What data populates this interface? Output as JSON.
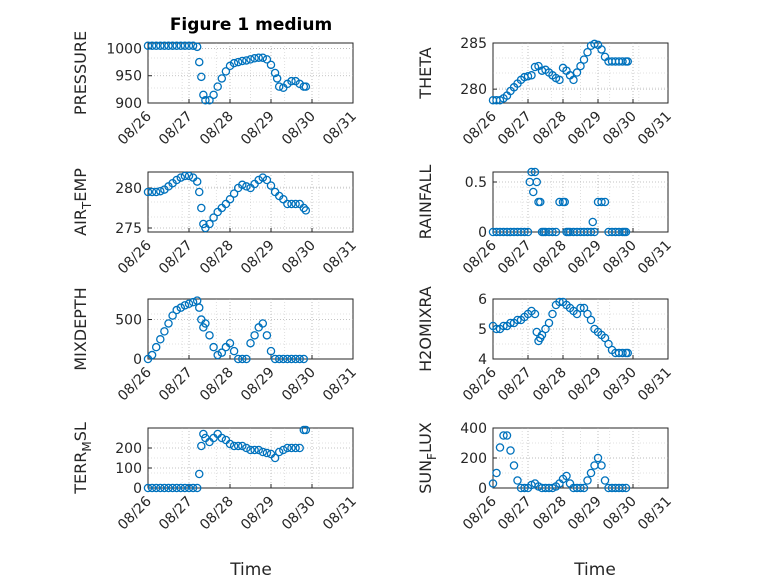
{
  "chart_data": {
    "type": "scatter",
    "title": "Figure 1 medium",
    "marker_color": "#0072BD",
    "x_ticks": [
      "08/26",
      "08/27",
      "08/28",
      "08/29",
      "08/30",
      "08/31"
    ],
    "x_label": "Time",
    "panels": [
      {
        "id": "pressure",
        "ylabel": "PRESSURE",
        "ylabel_sub": null,
        "ylim": [
          900,
          1010
        ],
        "yticks": [
          900,
          950,
          1000
        ],
        "x": [
          0.0,
          0.1,
          0.2,
          0.3,
          0.4,
          0.5,
          0.6,
          0.7,
          0.8,
          0.9,
          1.0,
          1.1,
          1.2,
          1.25,
          1.3,
          1.35,
          1.4,
          1.5,
          1.6,
          1.7,
          1.8,
          1.9,
          2.0,
          2.1,
          2.2,
          2.3,
          2.4,
          2.5,
          2.6,
          2.7,
          2.8,
          2.9,
          3.0,
          3.1,
          3.15,
          3.2,
          3.3,
          3.4,
          3.5,
          3.6,
          3.7,
          3.8,
          3.85
        ],
        "y": [
          1005,
          1005,
          1005,
          1005,
          1005,
          1005,
          1005,
          1005,
          1005,
          1005,
          1005,
          1005,
          1003,
          975,
          948,
          915,
          905,
          905,
          915,
          930,
          945,
          958,
          968,
          973,
          975,
          977,
          978,
          980,
          982,
          983,
          983,
          980,
          970,
          955,
          945,
          930,
          928,
          935,
          940,
          940,
          935,
          930,
          930
        ]
      },
      {
        "id": "theta",
        "ylabel": "THETA",
        "ylabel_sub": null,
        "ylim": [
          278.5,
          285
        ],
        "yticks": [
          280,
          285
        ],
        "x": [
          0.0,
          0.1,
          0.2,
          0.3,
          0.4,
          0.5,
          0.6,
          0.7,
          0.8,
          0.9,
          1.0,
          1.1,
          1.2,
          1.3,
          1.4,
          1.5,
          1.6,
          1.7,
          1.8,
          1.9,
          2.0,
          2.1,
          2.2,
          2.3,
          2.4,
          2.5,
          2.6,
          2.7,
          2.8,
          2.9,
          3.0,
          3.1,
          3.2,
          3.3,
          3.4,
          3.5,
          3.6,
          3.7,
          3.8,
          3.85
        ],
        "y": [
          278.8,
          278.8,
          278.8,
          279.0,
          279.3,
          279.8,
          280.2,
          280.6,
          281.0,
          281.3,
          281.4,
          281.5,
          282.4,
          282.5,
          282.0,
          282.1,
          281.8,
          281.5,
          281.2,
          281.0,
          282.3,
          282.0,
          281.5,
          281.0,
          281.8,
          282.5,
          283.2,
          284.0,
          284.7,
          284.9,
          284.8,
          284.3,
          283.5,
          283.0,
          283.0,
          283.0,
          283.0,
          283.0,
          283.0,
          283.0
        ]
      },
      {
        "id": "air_temp",
        "ylabel": "AIR",
        "ylabel_sub": "T",
        "ylabel_rest": "EMP",
        "ylim": [
          274.5,
          282
        ],
        "yticks": [
          275,
          280
        ],
        "x": [
          0.0,
          0.1,
          0.2,
          0.3,
          0.4,
          0.5,
          0.6,
          0.7,
          0.8,
          0.9,
          1.0,
          1.1,
          1.2,
          1.25,
          1.3,
          1.35,
          1.4,
          1.5,
          1.6,
          1.7,
          1.8,
          1.9,
          2.0,
          2.1,
          2.2,
          2.3,
          2.4,
          2.5,
          2.6,
          2.7,
          2.8,
          2.9,
          3.0,
          3.1,
          3.2,
          3.3,
          3.4,
          3.5,
          3.6,
          3.7,
          3.8,
          3.85
        ],
        "y": [
          279.5,
          279.5,
          279.5,
          279.6,
          279.8,
          280.2,
          280.6,
          281.0,
          281.3,
          281.5,
          281.5,
          281.3,
          280.8,
          279.5,
          277.5,
          275.5,
          275.0,
          275.5,
          276.3,
          277.0,
          277.5,
          278.0,
          278.6,
          279.3,
          280.0,
          280.4,
          280.2,
          280.0,
          280.5,
          281.0,
          281.3,
          281.0,
          280.3,
          279.5,
          279.0,
          278.6,
          278.0,
          278.0,
          278.0,
          278.0,
          277.5,
          277.2
        ]
      },
      {
        "id": "rainfall",
        "ylabel": "RAINFALL",
        "ylabel_sub": null,
        "ylim": [
          0,
          0.6
        ],
        "yticks": [
          0,
          0.5
        ],
        "x": [
          0.0,
          0.1,
          0.2,
          0.3,
          0.4,
          0.5,
          0.6,
          0.7,
          0.8,
          0.9,
          1.0,
          1.05,
          1.1,
          1.15,
          1.2,
          1.25,
          1.3,
          1.35,
          1.4,
          1.45,
          1.5,
          1.6,
          1.7,
          1.8,
          1.9,
          2.0,
          2.05,
          2.1,
          2.15,
          2.2,
          2.3,
          2.4,
          2.5,
          2.6,
          2.7,
          2.8,
          2.85,
          2.9,
          3.0,
          3.1,
          3.2,
          3.3,
          3.4,
          3.5,
          3.6,
          3.7,
          3.75,
          3.8
        ],
        "y": [
          0,
          0,
          0,
          0,
          0,
          0,
          0,
          0,
          0,
          0,
          0,
          0.5,
          0.6,
          0.4,
          0.6,
          0.5,
          0.3,
          0.3,
          0,
          0,
          0,
          0,
          0,
          0,
          0.3,
          0.3,
          0.3,
          0,
          0,
          0,
          0,
          0,
          0,
          0,
          0,
          0,
          0.1,
          0,
          0.3,
          0.3,
          0.3,
          0,
          0,
          0,
          0,
          0,
          0,
          0
        ]
      },
      {
        "id": "mixdepth",
        "ylabel": "MIXDEPTH",
        "ylabel_sub": null,
        "ylim": [
          0,
          760
        ],
        "yticks": [
          0,
          500
        ],
        "x": [
          0.0,
          0.1,
          0.2,
          0.3,
          0.4,
          0.5,
          0.6,
          0.7,
          0.8,
          0.9,
          1.0,
          1.1,
          1.2,
          1.25,
          1.3,
          1.35,
          1.4,
          1.5,
          1.6,
          1.7,
          1.8,
          1.9,
          2.0,
          2.1,
          2.2,
          2.3,
          2.4,
          2.5,
          2.6,
          2.7,
          2.8,
          2.9,
          3.0,
          3.1,
          3.2,
          3.3,
          3.4,
          3.5,
          3.6,
          3.7,
          3.8
        ],
        "y": [
          0,
          50,
          150,
          250,
          350,
          450,
          550,
          620,
          650,
          680,
          700,
          720,
          740,
          650,
          500,
          400,
          450,
          300,
          150,
          50,
          80,
          150,
          200,
          100,
          0,
          0,
          0,
          200,
          300,
          400,
          450,
          300,
          100,
          0,
          0,
          0,
          0,
          0,
          0,
          0,
          0
        ]
      },
      {
        "id": "h2omixra",
        "ylabel": "H2OMIXRA",
        "ylabel_sub": null,
        "ylim": [
          4,
          6
        ],
        "yticks": [
          4,
          5,
          6
        ],
        "x": [
          0.0,
          0.1,
          0.2,
          0.3,
          0.4,
          0.5,
          0.6,
          0.7,
          0.8,
          0.9,
          1.0,
          1.1,
          1.2,
          1.25,
          1.3,
          1.35,
          1.4,
          1.5,
          1.6,
          1.7,
          1.8,
          1.9,
          2.0,
          2.1,
          2.2,
          2.3,
          2.4,
          2.5,
          2.6,
          2.7,
          2.8,
          2.9,
          3.0,
          3.1,
          3.2,
          3.3,
          3.4,
          3.5,
          3.6,
          3.7,
          3.8,
          3.85
        ],
        "y": [
          5.1,
          5.0,
          5.0,
          5.1,
          5.1,
          5.2,
          5.2,
          5.3,
          5.3,
          5.4,
          5.5,
          5.6,
          5.5,
          4.9,
          4.6,
          4.7,
          4.8,
          5.0,
          5.2,
          5.5,
          5.8,
          5.9,
          5.9,
          5.8,
          5.7,
          5.6,
          5.5,
          5.7,
          5.7,
          5.5,
          5.3,
          5.0,
          4.9,
          4.8,
          4.7,
          4.5,
          4.3,
          4.2,
          4.2,
          4.2,
          4.2,
          4.2
        ]
      },
      {
        "id": "terr_msl",
        "ylabel": "TERR",
        "ylabel_sub": "M",
        "ylabel_rest": "SL",
        "ylim": [
          0,
          300
        ],
        "yticks": [
          0,
          100,
          200
        ],
        "x": [
          0.0,
          0.1,
          0.2,
          0.3,
          0.4,
          0.5,
          0.6,
          0.7,
          0.8,
          0.9,
          1.0,
          1.1,
          1.2,
          1.25,
          1.3,
          1.35,
          1.4,
          1.5,
          1.6,
          1.7,
          1.8,
          1.9,
          2.0,
          2.1,
          2.2,
          2.3,
          2.4,
          2.5,
          2.6,
          2.7,
          2.8,
          2.9,
          3.0,
          3.1,
          3.2,
          3.3,
          3.4,
          3.5,
          3.6,
          3.7,
          3.8,
          3.85
        ],
        "y": [
          0,
          0,
          0,
          0,
          0,
          0,
          0,
          0,
          0,
          0,
          0,
          0,
          0,
          70,
          210,
          270,
          250,
          230,
          250,
          270,
          250,
          240,
          220,
          210,
          210,
          210,
          200,
          190,
          190,
          190,
          180,
          175,
          170,
          150,
          180,
          190,
          200,
          200,
          200,
          200,
          290,
          290
        ]
      },
      {
        "id": "sun_flux",
        "ylabel": "SUN",
        "ylabel_sub": "F",
        "ylabel_rest": "LUX",
        "ylim": [
          0,
          400
        ],
        "yticks": [
          0,
          200,
          400
        ],
        "x": [
          0.0,
          0.1,
          0.2,
          0.3,
          0.4,
          0.5,
          0.6,
          0.7,
          0.8,
          0.9,
          1.0,
          1.1,
          1.2,
          1.3,
          1.4,
          1.5,
          1.6,
          1.7,
          1.8,
          1.9,
          2.0,
          2.1,
          2.2,
          2.3,
          2.4,
          2.5,
          2.6,
          2.7,
          2.8,
          2.9,
          3.0,
          3.1,
          3.2,
          3.3,
          3.4,
          3.5,
          3.6,
          3.7,
          3.8
        ],
        "y": [
          30,
          100,
          270,
          350,
          350,
          250,
          150,
          50,
          0,
          0,
          0,
          20,
          30,
          10,
          0,
          0,
          0,
          0,
          10,
          30,
          60,
          80,
          30,
          0,
          0,
          0,
          0,
          50,
          100,
          150,
          200,
          150,
          50,
          0,
          0,
          0,
          0,
          0,
          0
        ]
      }
    ]
  }
}
